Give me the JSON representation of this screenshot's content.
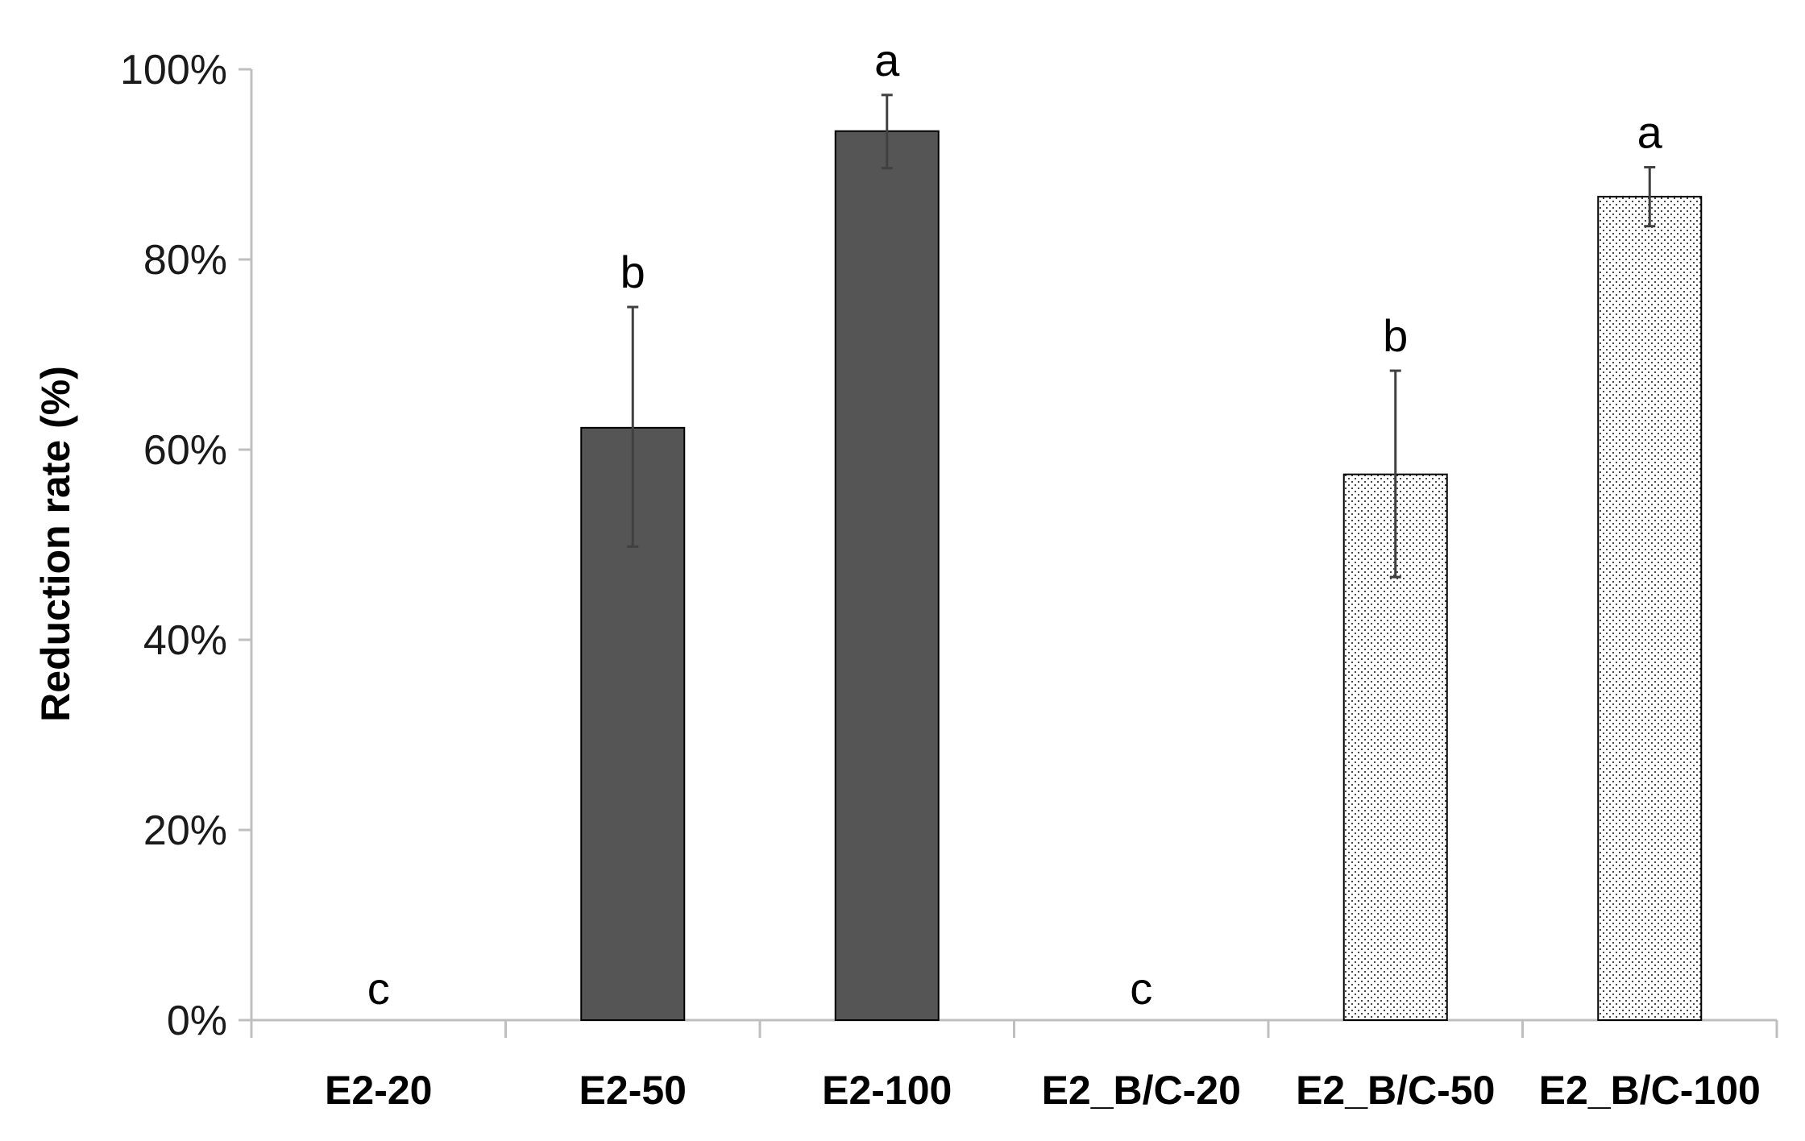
{
  "chart_data": {
    "type": "bar",
    "categories": [
      "E2-20",
      "E2-50",
      "E2-100",
      "E2_B/C-20",
      "E2_B/C-50",
      "E2_B/C-100"
    ],
    "values": [
      0,
      62.3,
      93.5,
      0,
      57.4,
      86.6
    ],
    "error_low": [
      0,
      49.8,
      89.6,
      0,
      46.6,
      83.5
    ],
    "error_high": [
      0,
      75.0,
      97.3,
      0,
      68.3,
      89.7
    ],
    "significance": [
      "c",
      "b",
      "a",
      "c",
      "b",
      "a"
    ],
    "bar_styles": [
      "solid",
      "solid",
      "solid",
      "dotted",
      "dotted",
      "dotted"
    ],
    "ylabel": "Reduction rate (%)",
    "xlabel": "",
    "ylim": [
      0,
      100
    ],
    "yticks": [
      0,
      20,
      40,
      60,
      80,
      100
    ],
    "ytick_labels": [
      "0%",
      "20%",
      "40%",
      "60%",
      "80%",
      "100%"
    ],
    "grid": false,
    "colors": {
      "solid": "#555555",
      "dotted_bg": "#ffffff",
      "dotted_dot": "#333333",
      "axis": "#bfbfbf",
      "error": "#404040"
    }
  }
}
